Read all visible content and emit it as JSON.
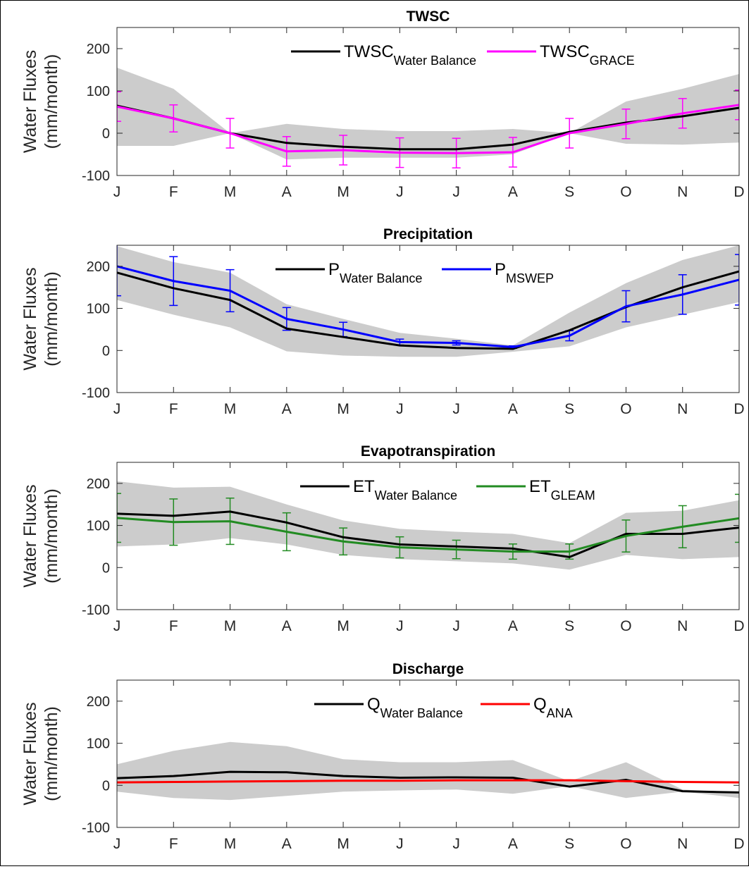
{
  "chart_data": [
    {
      "type": "line",
      "title": "TWSC",
      "ylabel": [
        "Water Fluxes",
        "(mm/month)"
      ],
      "ylim": [
        -100,
        250
      ],
      "yticks": [
        -100,
        0,
        100,
        200
      ],
      "categories": [
        "J",
        "F",
        "M",
        "A",
        "M",
        "J",
        "J",
        "A",
        "S",
        "O",
        "N",
        "D"
      ],
      "legend": "top-center",
      "band": {
        "color": "#cccccc",
        "upper": [
          155,
          105,
          0,
          22,
          10,
          5,
          5,
          10,
          0,
          75,
          105,
          140
        ],
        "lower": [
          -30,
          -30,
          0,
          -62,
          -58,
          -58,
          -58,
          -50,
          0,
          -25,
          -27,
          -22
        ]
      },
      "series": [
        {
          "name": "TWSC",
          "sub": "Water Balance",
          "color": "#000000",
          "values": [
            65,
            35,
            0,
            -23,
            -32,
            -38,
            -38,
            -27,
            3,
            25,
            40,
            60
          ]
        },
        {
          "name": "TWSC",
          "sub": "GRACE",
          "color": "#ff00ff",
          "values": [
            63,
            35,
            0,
            -43,
            -40,
            -46,
            -47,
            -45,
            0,
            22,
            47,
            67
          ],
          "errors": [
            35,
            32,
            35,
            35,
            35,
            35,
            35,
            35,
            35,
            35,
            35,
            35
          ]
        }
      ]
    },
    {
      "type": "line",
      "title": "Precipitation",
      "ylabel": [
        "Water Fluxes",
        "(mm/month)"
      ],
      "ylim": [
        -100,
        250
      ],
      "yticks": [
        -100,
        0,
        100,
        200
      ],
      "categories": [
        "J",
        "F",
        "M",
        "A",
        "M",
        "J",
        "J",
        "A",
        "S",
        "O",
        "N",
        "D"
      ],
      "legend": "top-center",
      "band": {
        "color": "#cccccc",
        "upper": [
          248,
          210,
          185,
          110,
          75,
          42,
          28,
          12,
          90,
          160,
          215,
          250
        ],
        "lower": [
          120,
          85,
          55,
          -2,
          -12,
          -15,
          -15,
          -3,
          10,
          55,
          85,
          115
        ]
      },
      "series": [
        {
          "name": "P",
          "sub": "Water Balance",
          "color": "#000000",
          "values": [
            185,
            148,
            120,
            52,
            32,
            12,
            6,
            4,
            48,
            103,
            150,
            188
          ]
        },
        {
          "name": "P",
          "sub": "MSWEP",
          "color": "#0000ff",
          "values": [
            200,
            165,
            142,
            75,
            50,
            20,
            18,
            8,
            35,
            105,
            133,
            168
          ],
          "errors": [
            70,
            58,
            50,
            27,
            17,
            7,
            5,
            3,
            12,
            37,
            47,
            60
          ]
        }
      ]
    },
    {
      "type": "line",
      "title": "Evapotranspiration",
      "ylabel": [
        "Water Fluxes",
        "(mm/month)"
      ],
      "ylim": [
        -100,
        250
      ],
      "yticks": [
        -100,
        0,
        100,
        200
      ],
      "categories": [
        "J",
        "F",
        "M",
        "A",
        "M",
        "J",
        "J",
        "A",
        "S",
        "O",
        "N",
        "D"
      ],
      "legend": "top-center",
      "band": {
        "color": "#cccccc",
        "upper": [
          205,
          190,
          192,
          150,
          112,
          92,
          85,
          80,
          58,
          130,
          135,
          160
        ],
        "lower": [
          50,
          55,
          70,
          55,
          30,
          20,
          15,
          10,
          -5,
          30,
          20,
          25
        ]
      },
      "series": [
        {
          "name": "ET",
          "sub": "Water Balance",
          "color": "#000000",
          "values": [
            128,
            123,
            133,
            107,
            72,
            55,
            50,
            45,
            25,
            80,
            80,
            95
          ]
        },
        {
          "name": "ET",
          "sub": "GLEAM",
          "color": "#228b22",
          "values": [
            118,
            108,
            110,
            85,
            62,
            48,
            43,
            38,
            38,
            75,
            97,
            117
          ],
          "errors": [
            58,
            55,
            55,
            45,
            32,
            25,
            22,
            18,
            18,
            38,
            50,
            57
          ]
        }
      ]
    },
    {
      "type": "line",
      "title": "Discharge",
      "ylabel": [
        "Water Fluxes",
        "(mm/month)"
      ],
      "ylim": [
        -100,
        250
      ],
      "yticks": [
        -100,
        0,
        100,
        200
      ],
      "categories": [
        "J",
        "F",
        "M",
        "A",
        "M",
        "J",
        "J",
        "A",
        "S",
        "O",
        "N",
        "D"
      ],
      "legend": "top-center",
      "band": {
        "color": "#cccccc",
        "upper": [
          50,
          82,
          103,
          93,
          62,
          55,
          55,
          60,
          10,
          55,
          -10,
          -18
        ],
        "lower": [
          -15,
          -30,
          -35,
          -25,
          -15,
          -12,
          -10,
          -20,
          -2,
          -30,
          -15,
          -30
        ]
      },
      "series": [
        {
          "name": "Q",
          "sub": "Water Balance",
          "color": "#000000",
          "values": [
            17,
            22,
            32,
            31,
            22,
            18,
            19,
            18,
            -3,
            13,
            -14,
            -17
          ]
        },
        {
          "name": "Q",
          "sub": "ANA",
          "color": "#ff0000",
          "values": [
            7,
            8,
            9,
            10,
            11,
            11,
            12,
            12,
            12,
            10,
            8,
            7
          ]
        }
      ]
    }
  ]
}
